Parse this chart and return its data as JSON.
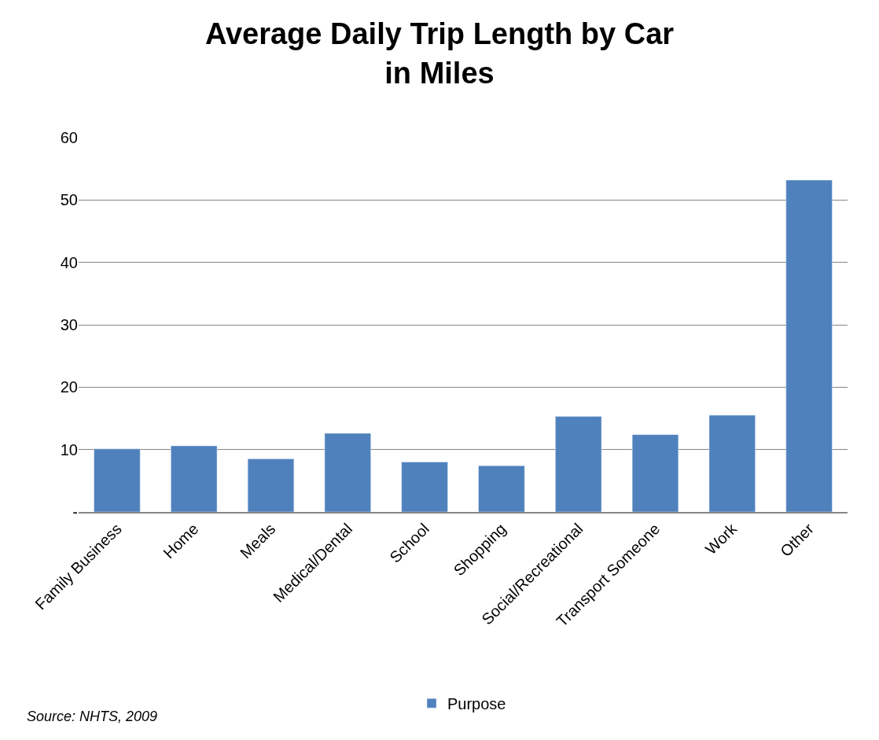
{
  "chart_data": {
    "type": "bar",
    "title": "Average Daily Trip Length by Car\nin Miles",
    "categories": [
      "Family Business",
      "Home",
      "Meals",
      "Medical/Dental",
      "School",
      "Shopping",
      "Social/Recreational",
      "Transport Someone",
      "Work",
      "Other"
    ],
    "series": [
      {
        "name": "Purpose",
        "color": "#4f81bd",
        "values": [
          10.1,
          10.6,
          8.5,
          12.6,
          8.0,
          7.4,
          15.3,
          12.4,
          15.5,
          53.2
        ]
      }
    ],
    "ylim": [
      0,
      60
    ],
    "yticks": [
      {
        "value": 0,
        "label": "-"
      },
      10,
      20,
      30,
      40,
      50,
      60
    ],
    "grid": "y",
    "legend": "bottom",
    "annotations": [
      "Source: NHTS, 2009"
    ]
  }
}
